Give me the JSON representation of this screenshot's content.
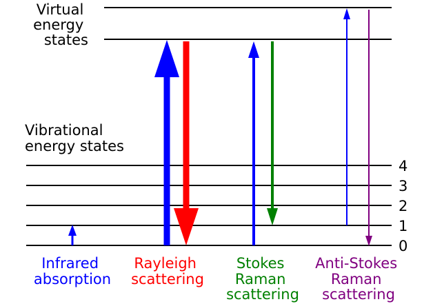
{
  "virtual_label": [
    "Virtual",
    "energy",
    "states"
  ],
  "vibrational_label": [
    "Vibrational",
    "energy states"
  ],
  "levels": [
    "0",
    "1",
    "2",
    "3",
    "4"
  ],
  "processes": [
    {
      "lines": [
        "Infrared",
        "absorption"
      ],
      "color": "#0000ff"
    },
    {
      "lines": [
        "Rayleigh",
        "scattering"
      ],
      "color": "#ff0000"
    },
    {
      "lines": [
        "Stokes",
        "Raman",
        "scattering"
      ],
      "color": "#008000"
    },
    {
      "lines": [
        "Anti-Stokes",
        "Raman",
        "scattering"
      ],
      "color": "#800080"
    }
  ],
  "colors": {
    "absorption_arrow": "#0000ff",
    "rayleigh_arrow": "#ff0000",
    "stokes_arrow": "#008000",
    "anti_stokes_arrow": "#800080",
    "lines": "#000000"
  }
}
